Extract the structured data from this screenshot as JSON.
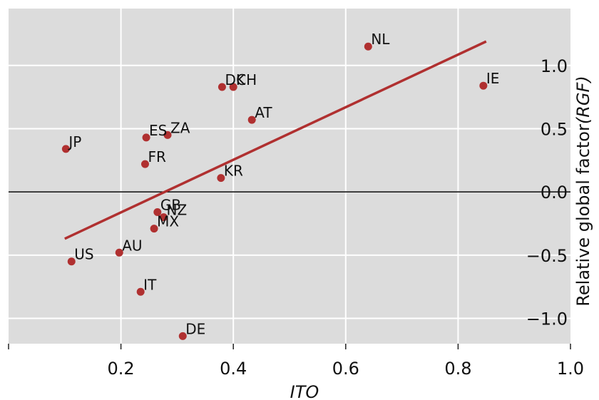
{
  "chart_data": {
    "type": "scatter",
    "xlabel": "ITO",
    "ylabel_main": "Relative global factor",
    "ylabel_abbr": "(RGF)",
    "xlim": [
      0.0,
      1.0
    ],
    "ylim": [
      -1.2,
      1.45
    ],
    "x_ticks": [
      0.2,
      0.4,
      0.6,
      0.8,
      1.0
    ],
    "x_tick_labels": [
      "0.2",
      "0.4",
      "0.6",
      "0.8",
      "1.0"
    ],
    "y_ticks": [
      1.0,
      0.5,
      0.0,
      -0.5,
      -1.0
    ],
    "y_tick_labels": [
      "1.0",
      "0.5",
      "0.0",
      "−0.5",
      "−1.0"
    ],
    "grid": true,
    "background_color": "#dcdcdc",
    "point_color": "#b03030",
    "fit_line_color": "#b03030",
    "zero_line_color": "#000000",
    "points": [
      {
        "label": "NL",
        "x": 0.64,
        "y": 1.15
      },
      {
        "label": "IE",
        "x": 0.845,
        "y": 0.84
      },
      {
        "label": "DK",
        "x": 0.38,
        "y": 0.83
      },
      {
        "label": "CH",
        "x": 0.4,
        "y": 0.83
      },
      {
        "label": "AT",
        "x": 0.433,
        "y": 0.57
      },
      {
        "label": "ES",
        "x": 0.245,
        "y": 0.43
      },
      {
        "label": "ZA",
        "x": 0.283,
        "y": 0.45
      },
      {
        "label": "JP",
        "x": 0.102,
        "y": 0.34
      },
      {
        "label": "FR",
        "x": 0.243,
        "y": 0.22
      },
      {
        "label": "KR",
        "x": 0.378,
        "y": 0.11
      },
      {
        "label": "GB",
        "x": 0.265,
        "y": -0.16
      },
      {
        "label": "NZ",
        "x": 0.276,
        "y": -0.2
      },
      {
        "label": "MX",
        "x": 0.259,
        "y": -0.29
      },
      {
        "label": "AU",
        "x": 0.197,
        "y": -0.48
      },
      {
        "label": "US",
        "x": 0.112,
        "y": -0.55
      },
      {
        "label": "IT",
        "x": 0.235,
        "y": -0.79
      },
      {
        "label": "DE",
        "x": 0.31,
        "y": -1.14
      }
    ],
    "fit_line": {
      "x": [
        0.1,
        0.85
      ],
      "y": [
        -0.37,
        1.19
      ]
    }
  }
}
